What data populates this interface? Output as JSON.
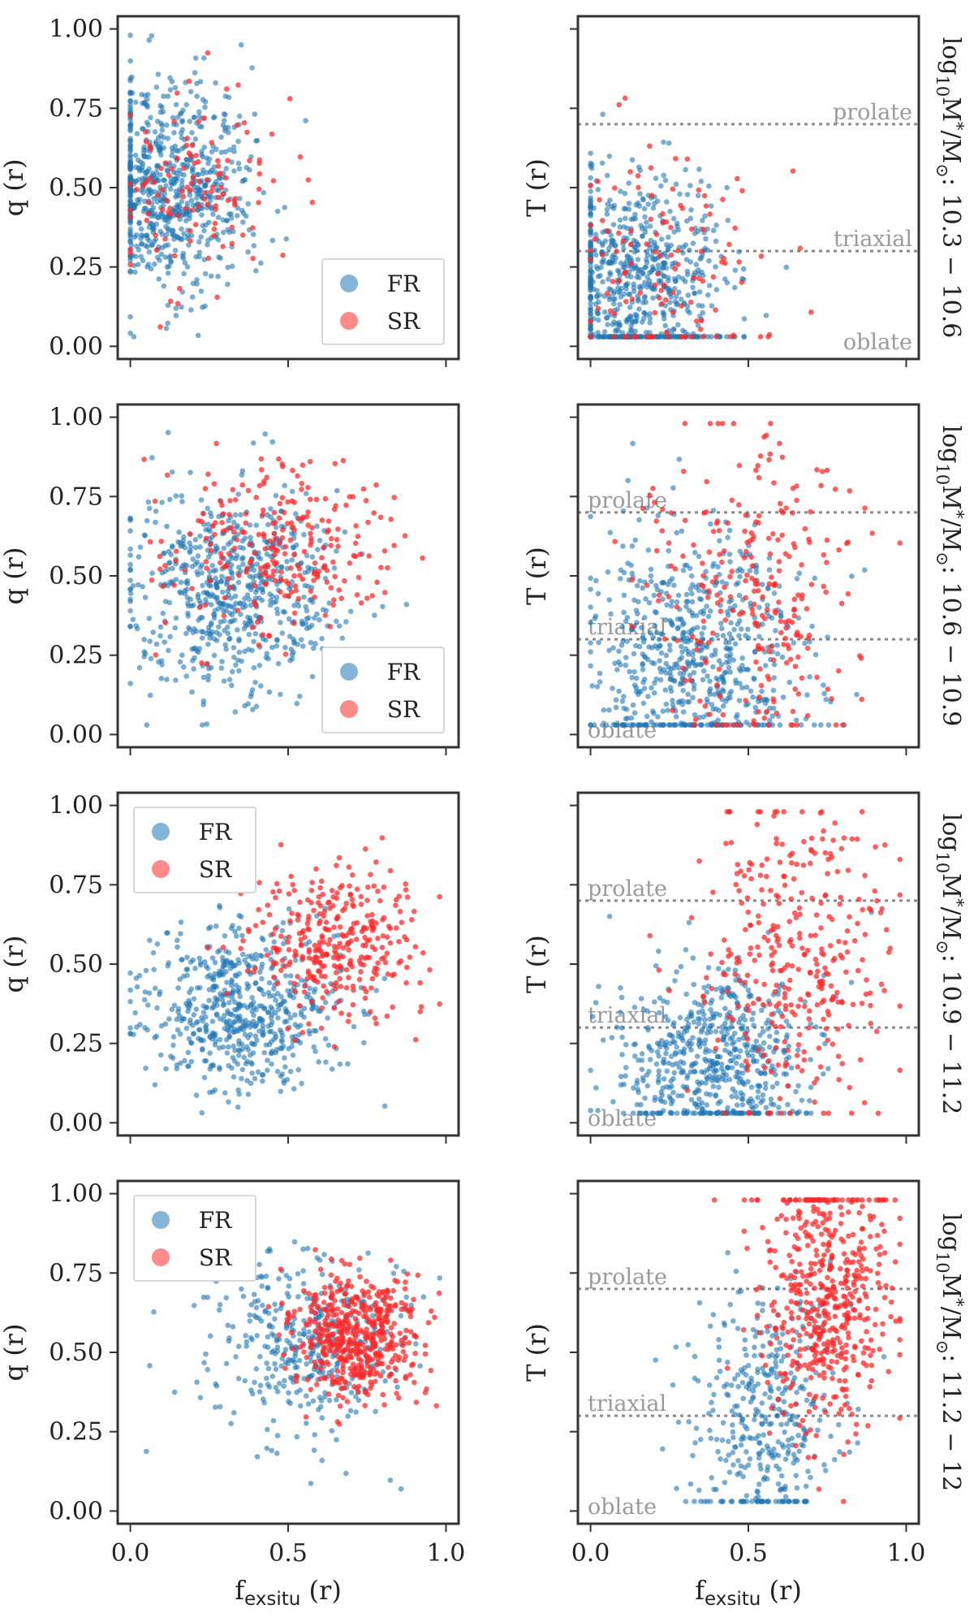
{
  "chart_data": {
    "type": "scatter",
    "legend": [
      {
        "name": "FR",
        "color": "#1f77b4"
      },
      {
        "name": "SR",
        "color": "#ff2a2a"
      }
    ],
    "xlabel": "f",
    "xlabel_sub": "exsitu",
    "xlabel_suffix": " (r)",
    "x_ticks": [
      "0.0",
      "0.5",
      "1.0"
    ],
    "x_range": [
      0,
      1
    ],
    "y_range": [
      0,
      1
    ],
    "left_ylabel": "q (r)",
    "left_y_ticks": [
      "0.00",
      "0.25",
      "0.50",
      "0.75",
      "1.00"
    ],
    "right_ylabel": "T (r)",
    "shape_thresholds": [
      0.7,
      0.3
    ],
    "shape_labels": {
      "prolate": "prolate",
      "triaxial": "triaxial",
      "oblate": "oblate"
    },
    "mass_label_prefix": "log",
    "mass_label_sub": "10",
    "mass_label_mid": "M",
    "mass_label_sup": "*",
    "mass_label_div": "/M",
    "mass_label_sun": "⊙",
    "rows": [
      {
        "mass_range": ": 10.3 − 10.6",
        "legend_position": "bottom-right",
        "q": {
          "FR": {
            "x_mean": 0.13,
            "x_sd": 0.12,
            "y_mean": 0.5,
            "y_sd": 0.17,
            "count": 700
          },
          "SR": {
            "x_mean": 0.22,
            "x_sd": 0.16,
            "y_mean": 0.52,
            "y_sd": 0.16,
            "count": 120
          }
        },
        "T": {
          "FR": {
            "x_mean": 0.15,
            "x_sd": 0.14,
            "y_mean": 0.2,
            "y_sd": 0.18,
            "count": 700
          },
          "SR": {
            "x_mean": 0.24,
            "x_sd": 0.17,
            "y_mean": 0.25,
            "y_sd": 0.22,
            "count": 120
          }
        }
      },
      {
        "mass_range": ": 10.6 − 10.9",
        "legend_position": "bottom-right",
        "q": {
          "FR": {
            "x_mean": 0.32,
            "x_sd": 0.17,
            "y_mean": 0.45,
            "y_sd": 0.16,
            "count": 650
          },
          "SR": {
            "x_mean": 0.5,
            "x_sd": 0.17,
            "y_mean": 0.58,
            "y_sd": 0.14,
            "count": 260
          }
        },
        "T": {
          "FR": {
            "x_mean": 0.32,
            "x_sd": 0.18,
            "y_mean": 0.25,
            "y_sd": 0.2,
            "count": 650
          },
          "SR": {
            "x_mean": 0.52,
            "x_sd": 0.18,
            "y_mean": 0.45,
            "y_sd": 0.26,
            "count": 260
          }
        }
      },
      {
        "mass_range": ": 10.9 − 11.2",
        "legend_position": "top-left",
        "q": {
          "FR": {
            "x_mean": 0.35,
            "x_sd": 0.15,
            "y_mean": 0.36,
            "y_sd": 0.13,
            "count": 600
          },
          "SR": {
            "x_mean": 0.65,
            "x_sd": 0.14,
            "y_mean": 0.57,
            "y_sd": 0.12,
            "count": 330
          }
        },
        "T": {
          "FR": {
            "x_mean": 0.4,
            "x_sd": 0.15,
            "y_mean": 0.2,
            "y_sd": 0.15,
            "count": 600
          },
          "SR": {
            "x_mean": 0.65,
            "x_sd": 0.14,
            "y_mean": 0.5,
            "y_sd": 0.25,
            "count": 330
          }
        }
      },
      {
        "mass_range": ": 11.2 − 12",
        "legend_position": "top-left",
        "q": {
          "FR": {
            "x_mean": 0.55,
            "x_sd": 0.16,
            "y_mean": 0.52,
            "y_sd": 0.15,
            "count": 380
          },
          "SR": {
            "x_mean": 0.72,
            "x_sd": 0.1,
            "y_mean": 0.55,
            "y_sd": 0.1,
            "count": 520
          }
        },
        "T": {
          "FR": {
            "x_mean": 0.55,
            "x_sd": 0.12,
            "y_mean": 0.3,
            "y_sd": 0.2,
            "count": 380
          },
          "SR": {
            "x_mean": 0.75,
            "x_sd": 0.1,
            "y_mean": 0.7,
            "y_sd": 0.22,
            "count": 520
          }
        }
      }
    ]
  }
}
